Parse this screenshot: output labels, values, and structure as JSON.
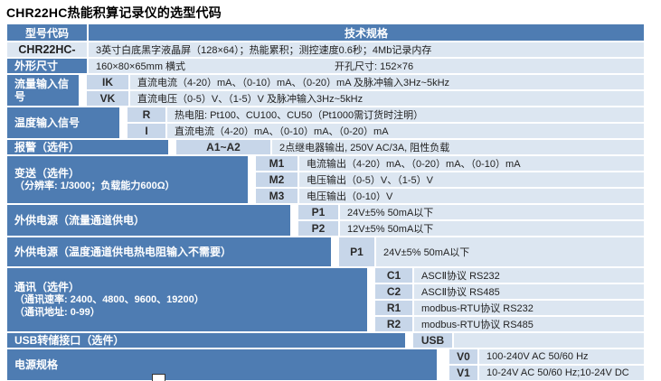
{
  "title": "CHR22HC热能积算记录仪的选型代码",
  "colors": {
    "accent_blue": "#4e7cb2",
    "cell_light": "#dce6f1",
    "cell_code": "#c7d6e9",
    "text_dark": "#222222",
    "label_text": "#ffffff"
  },
  "header": {
    "model_col": "型号代码",
    "spec_col": "技术规格"
  },
  "groups": [
    {
      "label": "CHR22HC-",
      "rows": [
        {
          "desc": "3英寸白底黑字液晶屏（128×64）；热能累积；测控速度0.6秒；4Mb记录内存"
        }
      ]
    },
    {
      "label": "外形尺寸",
      "rows": [
        {
          "desc": "160×80×65mm 横式",
          "desc2": "开孔尺寸: 152×76"
        }
      ]
    },
    {
      "label": "流量输入信号",
      "rows": [
        {
          "code": "IK",
          "desc": "直流电流（4-20）mA、（0-10）mA、（0-20）mA 及脉冲输入3Hz~5kHz"
        },
        {
          "code": "VK",
          "desc": "直流电压（0-5）V、（1-5）V 及脉冲输入3Hz~5kHz"
        }
      ]
    },
    {
      "label": "温度输入信号",
      "rows": [
        {
          "code": "R",
          "desc": "热电阻: Pt100、CU100、CU50（Pt1000需订货时注明）"
        },
        {
          "code": "I",
          "desc": "直流电流（4-20）mA、（0-10）mA、（0-20）mA"
        }
      ]
    },
    {
      "label": "报警（选件）",
      "rows": [
        {
          "code": "A1~A2",
          "desc": "2点继电器输出, 250V AC/3A, 阻性负载"
        }
      ]
    },
    {
      "label": "变送（选件）",
      "label2": "（分辨率: 1/3000；负载能力600Ω）",
      "rows": [
        {
          "code": "M1",
          "desc": "电流输出（4-20）mA、（0-20）mA、（0-10）mA"
        },
        {
          "code": "M2",
          "desc": "电压输出（0-5）V、（1-5）V"
        },
        {
          "code": "M3",
          "desc": "电压输出（0-10）V"
        }
      ]
    },
    {
      "label": "外供电源（流量通道供电）",
      "rows": [
        {
          "code": "P1",
          "desc": "24V±5%  50mA以下"
        },
        {
          "code": "P2",
          "desc": "12V±5%  50mA以下"
        }
      ]
    },
    {
      "label": "外供电源（温度通道供电热电阻输入不需要）",
      "rows": [
        {
          "code": "P1",
          "desc": "24V±5%  50mA以下"
        }
      ]
    },
    {
      "label": "通讯（选件）",
      "label2": "（通讯速率: 2400、4800、9600、19200）",
      "label3": "（通讯地址: 0-99）",
      "rows": [
        {
          "code": "C1",
          "desc": "ASCⅡ协议 RS232"
        },
        {
          "code": "C2",
          "desc": "ASCⅡ协议 RS485"
        },
        {
          "code": "R1",
          "desc": "modbus-RTU协议 RS232"
        },
        {
          "code": "R2",
          "desc": "modbus-RTU协议 RS485"
        }
      ]
    },
    {
      "label": "USB转储接口（选件）",
      "rows": [
        {
          "code": "USB",
          "desc": ""
        }
      ]
    },
    {
      "label": "电源规格",
      "rows": [
        {
          "code": "V0",
          "desc": "100-240V AC 50/60 Hz"
        },
        {
          "code": "V1",
          "desc": "10-24V AC 50/60 Hz;10-24V DC"
        }
      ]
    }
  ]
}
